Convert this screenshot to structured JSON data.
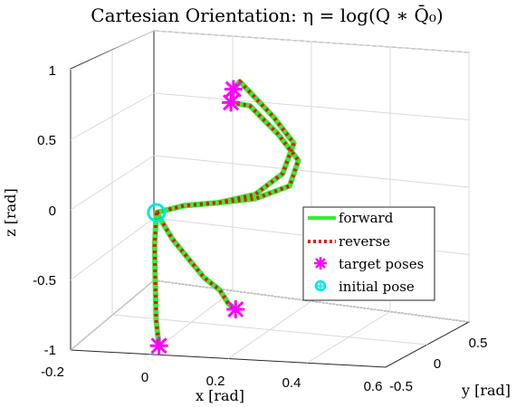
{
  "chart_data": {
    "type": "line",
    "title": "Cartesian Orientation:  η = log(Q ∗ Q̄₀)",
    "xlabel": "x [rad]",
    "ylabel": "y [rad]",
    "zlabel": "z [rad]",
    "xlim": [
      -0.2,
      0.6
    ],
    "ylim": [
      -0.5,
      0.5
    ],
    "zlim": [
      -1,
      1
    ],
    "x_ticks": [
      "-0.2",
      "0",
      "0.2",
      "0.4",
      "0.6"
    ],
    "y_ticks": [
      "-0.5",
      "0",
      "0.5"
    ],
    "z_ticks": [
      "-1",
      "-0.5",
      "0",
      "0.5",
      "1"
    ],
    "grid": true,
    "legend_position": "bottom-right",
    "colors": {
      "forward": "#33ee33",
      "reverse": "#ee1111",
      "target": "#ff00ff",
      "initial": "#00e5ee"
    },
    "series": [
      {
        "name": "forward",
        "branches": [
          {
            "x": [
              0.05,
              0.06,
              0.08,
              0.1,
              0.12,
              0.15
            ],
            "y": [
              0.0,
              -0.05,
              -0.1,
              -0.15,
              -0.2,
              -0.25
            ],
            "z": [
              0.0,
              -0.2,
              -0.4,
              -0.5,
              -0.65,
              -0.8
            ]
          },
          {
            "x": [
              0.05,
              0.1,
              0.15,
              0.2,
              0.25,
              0.28,
              0.3
            ],
            "y": [
              0.0,
              0.05,
              0.1,
              0.15,
              0.2,
              0.22,
              0.25
            ],
            "z": [
              0.0,
              -0.2,
              -0.35,
              -0.5,
              -0.6,
              -0.7,
              -0.75
            ]
          },
          {
            "x": [
              0.05,
              0.15,
              0.28,
              0.42,
              0.52,
              0.55,
              0.45,
              0.3,
              0.28
            ],
            "y": [
              0.0,
              0.05,
              0.1,
              0.15,
              0.2,
              0.25,
              0.28,
              0.3,
              0.28
            ],
            "z": [
              0.0,
              0.05,
              0.08,
              0.15,
              0.3,
              0.5,
              0.65,
              0.85,
              0.8
            ]
          },
          {
            "x": [
              0.05,
              0.15,
              0.28,
              0.42,
              0.55,
              0.58,
              0.48,
              0.35,
              0.28
            ],
            "y": [
              0.0,
              0.05,
              0.1,
              0.15,
              0.2,
              0.22,
              0.25,
              0.28,
              0.25
            ],
            "z": [
              0.0,
              0.05,
              0.08,
              0.12,
              0.22,
              0.4,
              0.55,
              0.7,
              0.72
            ]
          }
        ]
      },
      {
        "name": "reverse",
        "branches": "same path as forward, drawn dotted"
      },
      {
        "name": "target poses",
        "points": [
          {
            "x": 0.15,
            "y": -0.25,
            "z": -0.8
          },
          {
            "x": 0.3,
            "y": 0.25,
            "z": -0.75
          },
          {
            "x": 0.28,
            "y": 0.28,
            "z": 0.8
          },
          {
            "x": 0.28,
            "y": 0.25,
            "z": 0.72
          }
        ]
      },
      {
        "name": "initial pose",
        "points": [
          {
            "x": 0.05,
            "y": 0.0,
            "z": 0.0
          }
        ]
      }
    ],
    "legend": [
      "forward",
      "reverse",
      "target poses",
      "initial pose"
    ]
  }
}
